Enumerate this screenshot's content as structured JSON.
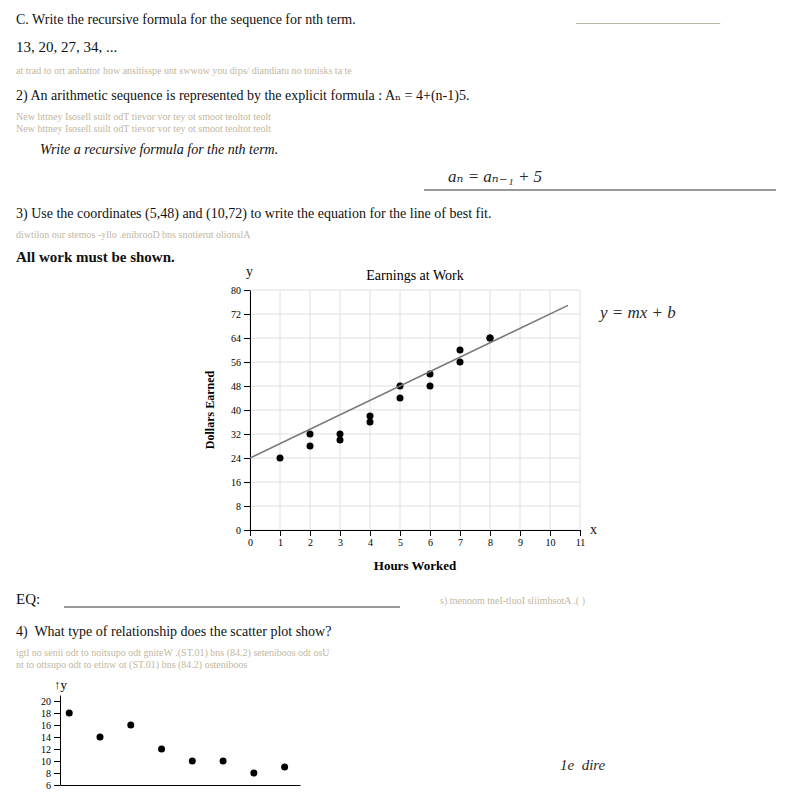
{
  "chart_data": [
    {
      "type": "scatter",
      "title": "Earnings at Work",
      "xlabel": "Hours Worked",
      "ylabel": "Dollars Earned",
      "xlim": [
        0,
        11
      ],
      "ylim": [
        0,
        80
      ],
      "xticks": [
        0,
        1,
        2,
        3,
        4,
        5,
        6,
        7,
        8,
        9,
        10,
        11
      ],
      "yticks": [
        0,
        8,
        16,
        24,
        32,
        40,
        48,
        56,
        64,
        72,
        80
      ],
      "grid": true,
      "series": [
        {
          "type": "scatter",
          "color": "black",
          "x": [
            1,
            2,
            2,
            3,
            3,
            4,
            4,
            5,
            5,
            6,
            6,
            7,
            7,
            8,
            8
          ],
          "values": [
            24,
            28,
            32,
            30,
            32,
            36,
            38,
            44,
            48,
            48,
            52,
            56,
            60,
            64,
            64
          ]
        },
        {
          "type": "line",
          "color": "#777777",
          "x": [
            0,
            10.6
          ],
          "values": [
            24,
            74.88
          ]
        }
      ],
      "annotations": [
        "C. Write the recursive formula for the sequence for nth term.",
        "________________________",
        "13, 20, 27, 34, ...",
        "at trad to ort anhattor how ansitisspe unt swwow you dips/ diandiatu no tonisks ta te",
        "2) An arithmetic sequence is represented by the explicit formula : Aₙ = 4+(n-1)5.",
        "New httney Isosell suilt odT tievor vor tey ot smoot teoltot teolt",
        "New httney Isosell suilt odT tievor vor tey ot smoot teoltot teolt",
        "Write a recursive formula for the nth term.",
        "aₙ = aₙ₋₁ + 5",
        "3) Use the coordinates (5,48) and (10,72) to write the equation for the line of best fit.",
        "diwtilon our stemos -yllo .enibrooD bns snotierut olionslA",
        "All work must be shown.",
        "y = mx + b",
        "y",
        "x",
        "EQ:",
        "s) tnenoom tneI-tluoI sliimhsotA .( )",
        "4)  What type of relationship does the scatter plot show?",
        "igtl no senii odt to noitsupo odt gniteW .(ST.01) bns (84.2) seteniboos odt osU",
        "nt to ottsupo odt to etinw ot (ST.01) bns (84.2) osteniboos",
        "1e  dire"
      ]
    },
    {
      "type": "scatter",
      "ylabel": "↑y",
      "xlim": [
        -0.3,
        7.5
      ],
      "ylim": [
        6,
        21
      ],
      "yticks": [
        6,
        8,
        10,
        12,
        14,
        16,
        18,
        20
      ],
      "tick_labels": "y",
      "grid": false,
      "series": [
        {
          "type": "scatter",
          "color": "black",
          "x": [
            0,
            1,
            2,
            3,
            4,
            5,
            6,
            7
          ],
          "values": [
            18,
            14,
            16,
            12,
            10,
            10,
            8,
            9
          ]
        }
      ]
    }
  ]
}
